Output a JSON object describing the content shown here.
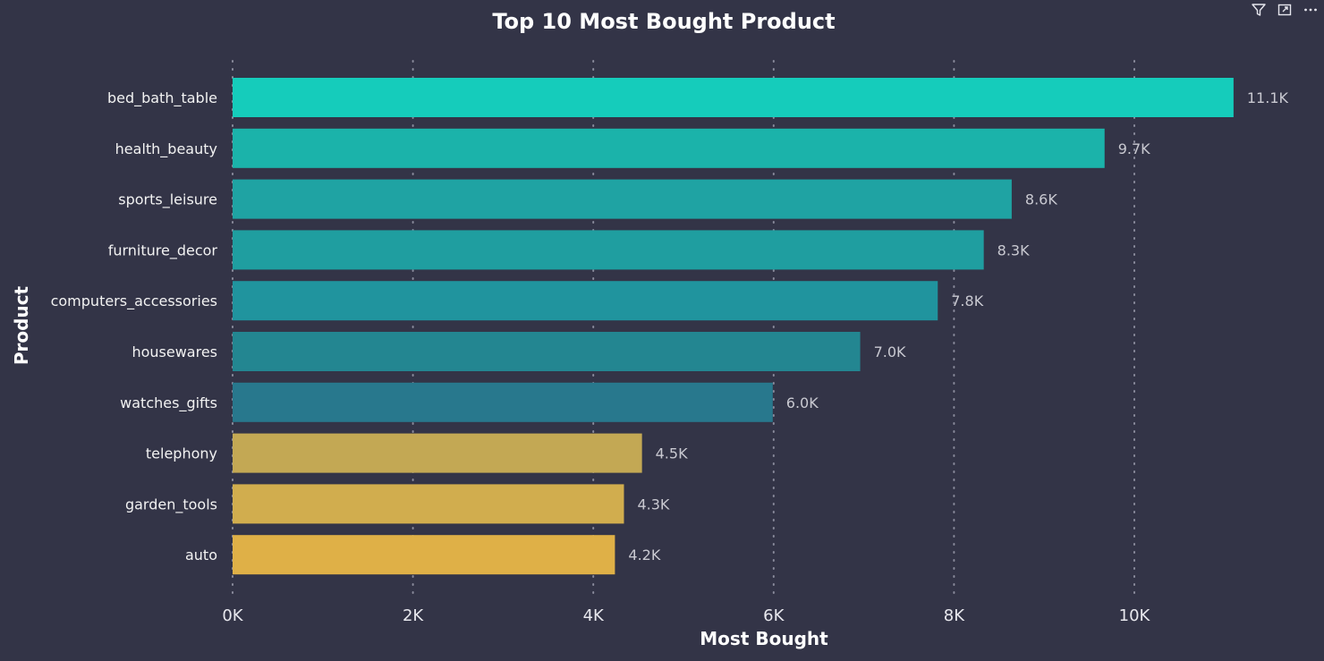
{
  "chart_data": {
    "type": "bar",
    "orientation": "horizontal",
    "title": "Top 10 Most Bought Product",
    "xlabel": "Most Bought",
    "ylabel": "Product",
    "xlim": [
      0,
      11100
    ],
    "xticks": [
      0,
      2000,
      4000,
      6000,
      8000,
      10000
    ],
    "xtick_labels": [
      "0K",
      "2K",
      "4K",
      "6K",
      "8K",
      "10K"
    ],
    "grid": "vertical-dotted",
    "categories": [
      "bed_bath_table",
      "health_beauty",
      "sports_leisure",
      "furniture_decor",
      "computers_accessories",
      "housewares",
      "watches_gifts",
      "telephony",
      "garden_tools",
      "auto"
    ],
    "values": [
      11100,
      9670,
      8640,
      8330,
      7820,
      6960,
      5990,
      4540,
      4340,
      4240
    ],
    "value_labels": [
      "11.1K",
      "9.7K",
      "8.6K",
      "8.3K",
      "7.8K",
      "7.0K",
      "6.0K",
      "4.5K",
      "4.3K",
      "4.2K"
    ],
    "colors": [
      "#15ccbb",
      "#1bb3aa",
      "#1fa3a3",
      "#1f9ea0",
      "#20949e",
      "#238691",
      "#28788d",
      "#c3a854",
      "#d1ad4e",
      "#dfb047"
    ]
  },
  "background_color": "#333447",
  "toolbar": {
    "icons": [
      "filter-icon",
      "focus-mode-icon",
      "more-options-icon"
    ]
  }
}
